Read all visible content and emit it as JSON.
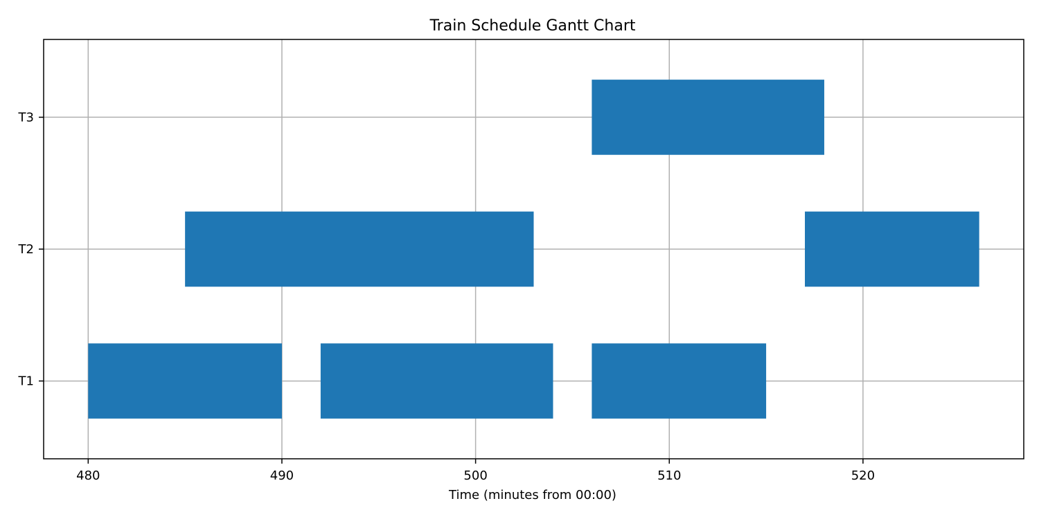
{
  "chart_data": {
    "type": "gantt",
    "title": "Train Schedule Gantt Chart",
    "xlabel": "Time (minutes from 00:00)",
    "ylabel": "",
    "xlim": [
      477.7,
      528.3
    ],
    "ylim": [
      0.41,
      3.59
    ],
    "xticks": [
      480,
      490,
      500,
      510,
      520
    ],
    "categories": [
      "T1",
      "T2",
      "T3"
    ],
    "grid": true,
    "bar_color": "#1f77b4",
    "segments": [
      {
        "train": "T1",
        "start": 480,
        "end": 490
      },
      {
        "train": "T1",
        "start": 492,
        "end": 504
      },
      {
        "train": "T1",
        "start": 506,
        "end": 515
      },
      {
        "train": "T2",
        "start": 485,
        "end": 503
      },
      {
        "train": "T2",
        "start": 517,
        "end": 526
      },
      {
        "train": "T3",
        "start": 506,
        "end": 518
      }
    ]
  }
}
